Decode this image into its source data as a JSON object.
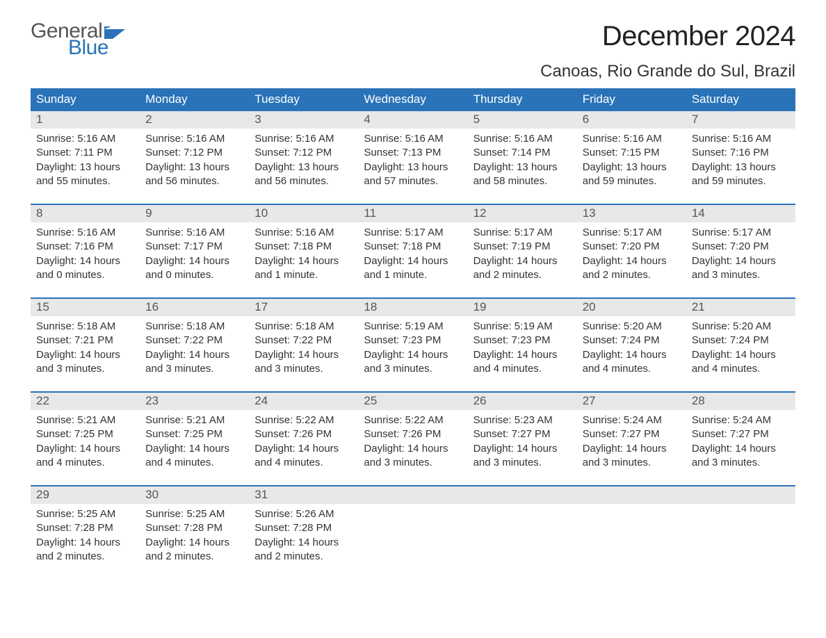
{
  "logo": {
    "text_general": "General",
    "text_blue": "Blue",
    "general_color": "#555555",
    "blue_color": "#2a73b8"
  },
  "header": {
    "month_title": "December 2024",
    "location": "Canoas, Rio Grande do Sul, Brazil",
    "title_fontsize": 40,
    "location_fontsize": 24
  },
  "colors": {
    "header_bg": "#2a73b8",
    "header_text": "#ffffff",
    "daynum_bg": "#e8e8e8",
    "daynum_text": "#555555",
    "week_divider": "#2a73b8",
    "body_text": "#333333",
    "background": "#ffffff"
  },
  "layout": {
    "columns": 7,
    "body_fontsize": 15,
    "dow_fontsize": 17
  },
  "days_of_week": [
    "Sunday",
    "Monday",
    "Tuesday",
    "Wednesday",
    "Thursday",
    "Friday",
    "Saturday"
  ],
  "weeks": [
    [
      {
        "n": "1",
        "sunrise": "Sunrise: 5:16 AM",
        "sunset": "Sunset: 7:11 PM",
        "d1": "Daylight: 13 hours",
        "d2": "and 55 minutes."
      },
      {
        "n": "2",
        "sunrise": "Sunrise: 5:16 AM",
        "sunset": "Sunset: 7:12 PM",
        "d1": "Daylight: 13 hours",
        "d2": "and 56 minutes."
      },
      {
        "n": "3",
        "sunrise": "Sunrise: 5:16 AM",
        "sunset": "Sunset: 7:12 PM",
        "d1": "Daylight: 13 hours",
        "d2": "and 56 minutes."
      },
      {
        "n": "4",
        "sunrise": "Sunrise: 5:16 AM",
        "sunset": "Sunset: 7:13 PM",
        "d1": "Daylight: 13 hours",
        "d2": "and 57 minutes."
      },
      {
        "n": "5",
        "sunrise": "Sunrise: 5:16 AM",
        "sunset": "Sunset: 7:14 PM",
        "d1": "Daylight: 13 hours",
        "d2": "and 58 minutes."
      },
      {
        "n": "6",
        "sunrise": "Sunrise: 5:16 AM",
        "sunset": "Sunset: 7:15 PM",
        "d1": "Daylight: 13 hours",
        "d2": "and 59 minutes."
      },
      {
        "n": "7",
        "sunrise": "Sunrise: 5:16 AM",
        "sunset": "Sunset: 7:16 PM",
        "d1": "Daylight: 13 hours",
        "d2": "and 59 minutes."
      }
    ],
    [
      {
        "n": "8",
        "sunrise": "Sunrise: 5:16 AM",
        "sunset": "Sunset: 7:16 PM",
        "d1": "Daylight: 14 hours",
        "d2": "and 0 minutes."
      },
      {
        "n": "9",
        "sunrise": "Sunrise: 5:16 AM",
        "sunset": "Sunset: 7:17 PM",
        "d1": "Daylight: 14 hours",
        "d2": "and 0 minutes."
      },
      {
        "n": "10",
        "sunrise": "Sunrise: 5:16 AM",
        "sunset": "Sunset: 7:18 PM",
        "d1": "Daylight: 14 hours",
        "d2": "and 1 minute."
      },
      {
        "n": "11",
        "sunrise": "Sunrise: 5:17 AM",
        "sunset": "Sunset: 7:18 PM",
        "d1": "Daylight: 14 hours",
        "d2": "and 1 minute."
      },
      {
        "n": "12",
        "sunrise": "Sunrise: 5:17 AM",
        "sunset": "Sunset: 7:19 PM",
        "d1": "Daylight: 14 hours",
        "d2": "and 2 minutes."
      },
      {
        "n": "13",
        "sunrise": "Sunrise: 5:17 AM",
        "sunset": "Sunset: 7:20 PM",
        "d1": "Daylight: 14 hours",
        "d2": "and 2 minutes."
      },
      {
        "n": "14",
        "sunrise": "Sunrise: 5:17 AM",
        "sunset": "Sunset: 7:20 PM",
        "d1": "Daylight: 14 hours",
        "d2": "and 3 minutes."
      }
    ],
    [
      {
        "n": "15",
        "sunrise": "Sunrise: 5:18 AM",
        "sunset": "Sunset: 7:21 PM",
        "d1": "Daylight: 14 hours",
        "d2": "and 3 minutes."
      },
      {
        "n": "16",
        "sunrise": "Sunrise: 5:18 AM",
        "sunset": "Sunset: 7:22 PM",
        "d1": "Daylight: 14 hours",
        "d2": "and 3 minutes."
      },
      {
        "n": "17",
        "sunrise": "Sunrise: 5:18 AM",
        "sunset": "Sunset: 7:22 PM",
        "d1": "Daylight: 14 hours",
        "d2": "and 3 minutes."
      },
      {
        "n": "18",
        "sunrise": "Sunrise: 5:19 AM",
        "sunset": "Sunset: 7:23 PM",
        "d1": "Daylight: 14 hours",
        "d2": "and 3 minutes."
      },
      {
        "n": "19",
        "sunrise": "Sunrise: 5:19 AM",
        "sunset": "Sunset: 7:23 PM",
        "d1": "Daylight: 14 hours",
        "d2": "and 4 minutes."
      },
      {
        "n": "20",
        "sunrise": "Sunrise: 5:20 AM",
        "sunset": "Sunset: 7:24 PM",
        "d1": "Daylight: 14 hours",
        "d2": "and 4 minutes."
      },
      {
        "n": "21",
        "sunrise": "Sunrise: 5:20 AM",
        "sunset": "Sunset: 7:24 PM",
        "d1": "Daylight: 14 hours",
        "d2": "and 4 minutes."
      }
    ],
    [
      {
        "n": "22",
        "sunrise": "Sunrise: 5:21 AM",
        "sunset": "Sunset: 7:25 PM",
        "d1": "Daylight: 14 hours",
        "d2": "and 4 minutes."
      },
      {
        "n": "23",
        "sunrise": "Sunrise: 5:21 AM",
        "sunset": "Sunset: 7:25 PM",
        "d1": "Daylight: 14 hours",
        "d2": "and 4 minutes."
      },
      {
        "n": "24",
        "sunrise": "Sunrise: 5:22 AM",
        "sunset": "Sunset: 7:26 PM",
        "d1": "Daylight: 14 hours",
        "d2": "and 4 minutes."
      },
      {
        "n": "25",
        "sunrise": "Sunrise: 5:22 AM",
        "sunset": "Sunset: 7:26 PM",
        "d1": "Daylight: 14 hours",
        "d2": "and 3 minutes."
      },
      {
        "n": "26",
        "sunrise": "Sunrise: 5:23 AM",
        "sunset": "Sunset: 7:27 PM",
        "d1": "Daylight: 14 hours",
        "d2": "and 3 minutes."
      },
      {
        "n": "27",
        "sunrise": "Sunrise: 5:24 AM",
        "sunset": "Sunset: 7:27 PM",
        "d1": "Daylight: 14 hours",
        "d2": "and 3 minutes."
      },
      {
        "n": "28",
        "sunrise": "Sunrise: 5:24 AM",
        "sunset": "Sunset: 7:27 PM",
        "d1": "Daylight: 14 hours",
        "d2": "and 3 minutes."
      }
    ],
    [
      {
        "n": "29",
        "sunrise": "Sunrise: 5:25 AM",
        "sunset": "Sunset: 7:28 PM",
        "d1": "Daylight: 14 hours",
        "d2": "and 2 minutes."
      },
      {
        "n": "30",
        "sunrise": "Sunrise: 5:25 AM",
        "sunset": "Sunset: 7:28 PM",
        "d1": "Daylight: 14 hours",
        "d2": "and 2 minutes."
      },
      {
        "n": "31",
        "sunrise": "Sunrise: 5:26 AM",
        "sunset": "Sunset: 7:28 PM",
        "d1": "Daylight: 14 hours",
        "d2": "and 2 minutes."
      },
      null,
      null,
      null,
      null
    ]
  ]
}
